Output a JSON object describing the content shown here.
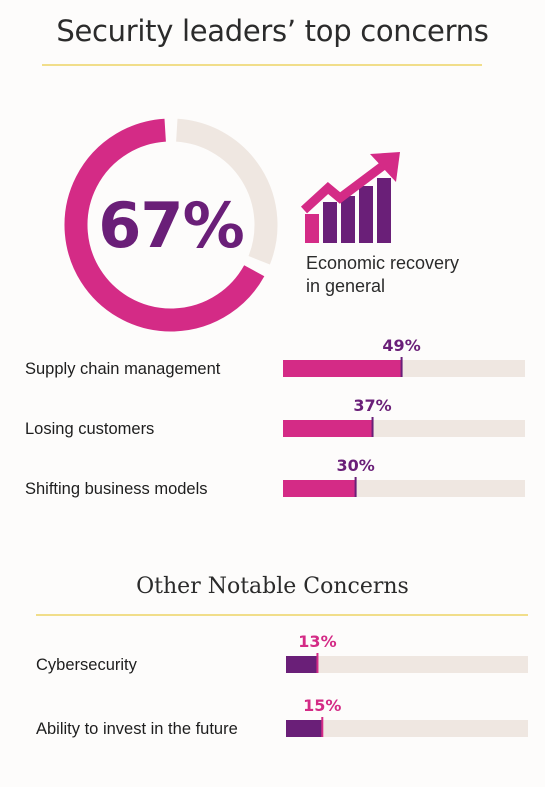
{
  "title": "Security leaders’ top concerns",
  "headline": {
    "percent_label": "67%",
    "value": 67,
    "caption_line1": "Economic recovery",
    "caption_line2": "in general",
    "icon": "rising-bar-chart-arrow-icon"
  },
  "section2_title": "Other Notable Concerns",
  "colors": {
    "magenta": "#d42b86",
    "purple": "#6a1f78",
    "track": "#efe7e1",
    "rule": "#f1de8a"
  },
  "chart_data": [
    {
      "type": "pie",
      "categories": [
        "Economic recovery in general"
      ],
      "values": [
        67
      ],
      "ylim": [
        0,
        100
      ],
      "labels": [
        "67%"
      ]
    },
    {
      "type": "bar",
      "orientation": "horizontal",
      "categories": [
        "Supply chain management",
        "Losing customers",
        "Shifting business models"
      ],
      "values": [
        49,
        37,
        30
      ],
      "labels": [
        "49%",
        "37%",
        "30%"
      ],
      "xlim": [
        0,
        100
      ]
    },
    {
      "type": "bar",
      "orientation": "horizontal",
      "title": "Other Notable Concerns",
      "categories": [
        "Cybersecurity",
        "Ability to invest in the future"
      ],
      "values": [
        13,
        15
      ],
      "labels": [
        "13%",
        "15%"
      ],
      "xlim": [
        0,
        100
      ]
    }
  ]
}
